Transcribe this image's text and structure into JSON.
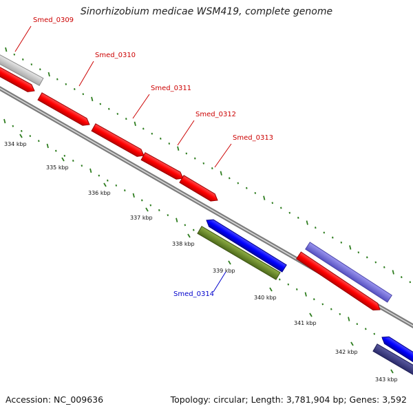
{
  "title": "Sinorhizobium medicae WSM419, complete genome",
  "accession": "Accession: NC_009636",
  "topology": "Topology: circular; Length: 3,781,904 bp; Genes: 3,592",
  "colors": {
    "background": "#ffffff",
    "backbone": "#8a8a8a",
    "tick": "#2e7d1f",
    "gene_forward": "#ff0000",
    "gene_reverse": "#0000ff",
    "gene_other": "#6f8f2a",
    "label_forward": "#cc0000",
    "label_reverse": "#0000cc"
  },
  "scale_labels": [
    "334 kbp",
    "335 kbp",
    "336 kbp",
    "337 kbp",
    "338 kbp",
    "339 kbp",
    "340 kbp",
    "341 kbp",
    "342 kbp",
    "343 kbp"
  ],
  "gene_labels": [
    {
      "id": "Smed_0309",
      "strand": "forward"
    },
    {
      "id": "Smed_0310",
      "strand": "forward"
    },
    {
      "id": "Smed_0311",
      "strand": "forward"
    },
    {
      "id": "Smed_0312",
      "strand": "forward"
    },
    {
      "id": "Smed_0313",
      "strand": "forward"
    },
    {
      "id": "Smed_0314",
      "strand": "reverse"
    }
  ]
}
